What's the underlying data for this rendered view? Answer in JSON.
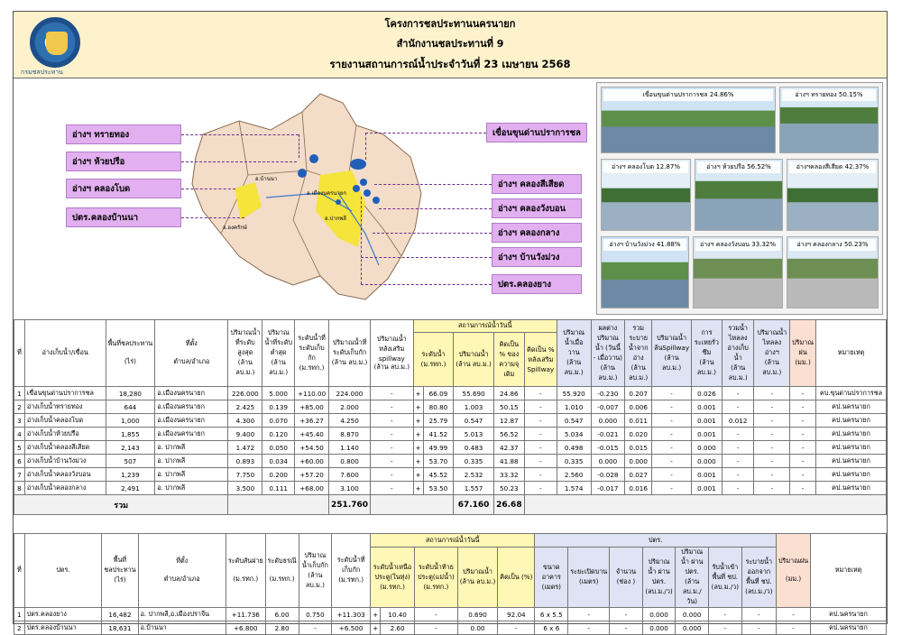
{
  "header": {
    "line1": "โครงการชลประทานนครนายก",
    "line2": "สำนักงานชลประทานที่ 9",
    "line3": "รายงานสถานการณ์น้ำประจำวันที่  23  เมษายน  2568",
    "logo_text": "กรมชลประทาน"
  },
  "map_labels": {
    "left": [
      "อ่างฯ ทรายทอง",
      "อ่างฯ ห้วยปรือ",
      "อ่างฯ คลองโบด",
      "ปตร.คลองบ้านนา"
    ],
    "right": [
      "เขื่อนขุนด่านปราการชล",
      "อ่างฯ คลองสีเสียด",
      "อ่างฯ คลองวังบอน",
      "อ่างฯ คลองกลาง",
      "อ่างฯ บ้านวังม่วง",
      "ปตร.คลองยาง"
    ],
    "towns": [
      "อ.บ้านนา",
      "อ.เมืองนครนายก",
      "อ.ปากพลี",
      "อ.องครักษ์"
    ]
  },
  "photos": [
    "เขื่อนขุนด่านปราการชล  24.86%",
    "อ่างฯ ทรายทอง 50.15%",
    "อ่างฯ คลองโบด 12.87%",
    "อ่างฯ ห้วยปรือ 56.52%",
    "อ่างฯคลองสีเสียด 42.37%",
    "อ่างฯ บ้านวังม่วง 41.88%",
    "อ่างฯ คลองวังบอน 33.32%",
    "อ่างฯ คลองกลาง  50.23%"
  ],
  "table1": {
    "headers": {
      "no": "ที่",
      "name": "อ่างเก็บน้ำ/เขื่อน",
      "area": "พื้นที่ชลประทาน",
      "area_unit": "(ไร่)",
      "loc": "ที่ตั้ง",
      "loc_sub": "ตำบล/อำเภอ",
      "cap_max": "ปริมาณน้ำที่ระดับสูงสุด",
      "cap_min": "ปริมาณน้ำที่ระดับต่ำสุด",
      "level_store": "ระดับน้ำที่ระดับเก็บกัก",
      "cap_store": "ปริมาณน้ำที่ระดับเก็บกัก",
      "spillway": "ปริมาณน้ำหลังเสริม spillway",
      "current_group": "สถานการณ์น้ำวันนี้",
      "cur_level": "ระดับน้ำ",
      "cur_volume": "ปริมาณน้ำ",
      "cur_pct": "คิดเป็น % ของความจุเดิม",
      "cur_pct_sp": "คิดเป็น % หลังเสริม Spillway",
      "yesterday": "ปริมาณน้ำเมื่อวาน",
      "diff": "ผลต่างปริมาณน้ำ (วันนี้ - เมื่อวาน)",
      "release": "รวมระบายน้ำจากอ่าง",
      "over_spill": "ปริมาณน้ำล้นSpillway",
      "evap": "การระเหยรั่วซึม",
      "inflow": "รวมน้ำไหลลงอ่างเก็บน้ำ",
      "inflow2": "ปริมาณน้ำไหลลงอ่างฯ",
      "rain": "ปริมาณฝน",
      "remark": "หมายเหตุ",
      "u_mcm": "(ล้าน ลบ.ม.)",
      "u_msl": "(ม.รทก.)",
      "u_mm": "(มม.)"
    },
    "rows": [
      [
        "1",
        "เขื่อนขุนด่านปราการชล",
        "18,280",
        "อ.เมืองนครนายก",
        "226.000",
        "5.000",
        "+110.00",
        "224.000",
        "-",
        "+",
        "66.09",
        "55.690",
        "24.86",
        "-",
        "55.920",
        "-0.230",
        "0.207",
        "-",
        "0.026",
        "-",
        "-",
        "-",
        "คบ.ขุนด่านปราการชล"
      ],
      [
        "2",
        "อ่างเก็บน้ำทรายทอง",
        "644",
        "อ.เมืองนครนายก",
        "2.425",
        "0.139",
        "+85.00",
        "2.000",
        "-",
        "+",
        "80.80",
        "1.003",
        "50.15",
        "-",
        "1.010",
        "-0.007",
        "0.006",
        "-",
        "0.001",
        "-",
        "-",
        "-",
        "คป.นครนายก"
      ],
      [
        "3",
        "อ่างเก็บน้ำคลองโบด",
        "1,000",
        "อ.เมืองนครนายก",
        "4.300",
        "0.070",
        "+36.27",
        "4.250",
        "-",
        "+",
        "25.79",
        "0.547",
        "12.87",
        "-",
        "0.547",
        "0.000",
        "0.011",
        "-",
        "0.001",
        "0.012",
        "-",
        "-",
        "คป.นครนายก"
      ],
      [
        "4",
        "อ่างเก็บน้ำห้วยปรือ",
        "1,855",
        "อ.เมืองนครนายก",
        "9.400",
        "0.120",
        "+45.40",
        "8.870",
        "-",
        "+",
        "41.52",
        "5.013",
        "56.52",
        "-",
        "5.034",
        "-0.021",
        "0.020",
        "-",
        "0.001",
        "-",
        "-",
        "-",
        "คป.นครนายก"
      ],
      [
        "5",
        "อ่างเก็บน้ำคลองสีเสียด",
        "2,143",
        "อ. ปากพลี",
        "1.472",
        "0.050",
        "+54.50",
        "1.140",
        "-",
        "+",
        "49.99",
        "0.483",
        "42.37",
        "-",
        "0.498",
        "-0.015",
        "0.015",
        "-",
        "0.000",
        "-",
        "-",
        "-",
        "คป.นครนายก"
      ],
      [
        "6",
        "อ่างเก็บน้ำบ้านวังม่วง",
        "507",
        "อ. ปากพลี",
        "0.893",
        "0.034",
        "+60.00",
        "0.800",
        "-",
        "+",
        "53.70",
        "0.335",
        "41.88",
        "-",
        "0.335",
        "0.000",
        "0.000",
        "-",
        "0.000",
        "-",
        "-",
        "-",
        "คป.นครนายก"
      ],
      [
        "7",
        "อ่างเก็บน้ำคลองวังบอน",
        "1,239",
        "อ. ปากพลี",
        "7.750",
        "0.200",
        "+57.20",
        "7.600",
        "-",
        "+",
        "45.52",
        "2.532",
        "33.32",
        "-",
        "2.560",
        "-0.028",
        "0.027",
        "-",
        "0.001",
        "-",
        "-",
        "-",
        "คป.นครนายก"
      ],
      [
        "8",
        "อ่างเก็บน้ำคลองกลาง",
        "2,491",
        "อ. ปากพลี",
        "3.500",
        "0.111",
        "+68.00",
        "3.100",
        "-",
        "+",
        "53.50",
        "1.557",
        "50.23",
        "-",
        "1.574",
        "-0.017",
        "0.016",
        "-",
        "0.001",
        "-",
        "-",
        "-",
        "คป.นครนายก"
      ]
    ],
    "sum": {
      "label": "รวม",
      "store": "251.760",
      "volume": "67.160",
      "pct": "26.68"
    }
  },
  "table2": {
    "headers": {
      "no": "ที่",
      "name": "ปตร.",
      "area": "พื้นที่ชลประทาน",
      "area_unit": "(ไร่)",
      "loc": "ที่ตั้ง",
      "loc_sub": "ตำบล/อำเภอ",
      "sill": "ระดับสันฝาย",
      "crest": "ระดับธรณี",
      "cap": "ปริมาณน้ำเก็บกัก",
      "store_level": "ระดับน้ำที่เก็บกัก",
      "current_group": "สถานการณ์น้ำวันนี้",
      "up": "ระดับน้ำเหนือ ประตู(ในทุ่ง)",
      "down": "ระดับน้ำท้าย ประตู(แม่น้ำ)",
      "vol": "ปริมาณน้ำ",
      "pct": "คิดเป็น (%)",
      "gate_group": "ปตร.",
      "gate_size": "ขนาด อาคาร",
      "open": "ระยะเปิดบาน",
      "count": "จำนวน",
      "flow_q": "ปริมาณน้ำ ผ่าน ปตร.",
      "flow_v": "ปริมาณน้ำ ผ่าน ปตร.",
      "into": "รับน้ำเข้า พื้นที่ ชป.",
      "out": "ระบายน้ำ ออกจาก พื้นที่ ชป.",
      "rain": "ปริมาณฝน",
      "remark": "หมายเหตุ",
      "u_msl": "(ม.รทก.)",
      "u_mcm": "(ล้าน ลบ.ม.)",
      "u_m": "(เมตร)",
      "u_door": "(ช่อง )",
      "u_cms": "(ลบ.ม./ว)",
      "u_mday": "(ล้าน ลบ.ม./วัน)",
      "u_mm": "(มม.)"
    },
    "rows": [
      [
        "1",
        "ปตร.คลองยาง",
        "16,482",
        "อ. ปากพลี,อ.เมืองปราจีน",
        "+11.736",
        "6.00",
        "0.750",
        "+11.303",
        "+",
        "10.40",
        "-",
        "0.690",
        "92.04",
        "6 x 5.5",
        "-",
        "-",
        "0.000",
        "0.000",
        "-",
        "-",
        "-",
        "คป.นครนายก"
      ],
      [
        "2",
        "ปตร.คลองบ้านนา",
        "18,631",
        "อ.บ้านนา",
        "+6.800",
        "2.80",
        "-",
        "+6.500",
        "+",
        "2.60",
        "-",
        "0.00",
        "-",
        "6 x 6",
        "-",
        "-",
        "0.000",
        "0.000",
        "-",
        "-",
        "-",
        "คป.นครนายก"
      ]
    ]
  }
}
